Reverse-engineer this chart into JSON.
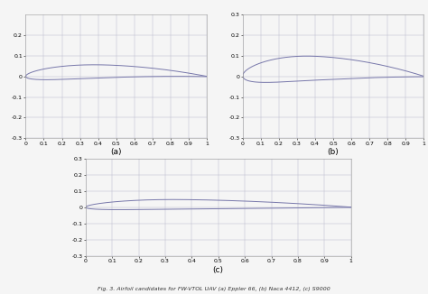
{
  "title": "Fig. 3. Airfoil candidates for FW-VTOL UAV (a) Eppler 66, (b) Naca 4412, (c) S9000",
  "line_color": "#7777aa",
  "line_width": 0.7,
  "grid_color": "#bbbbcc",
  "background": "#f5f5f5",
  "ylim_a": [
    -0.3,
    0.3
  ],
  "ylim_b": [
    -0.3,
    0.3
  ],
  "ylim_c": [
    -0.3,
    0.3
  ],
  "xlim": [
    0,
    1
  ],
  "yticks_a": [
    -0.3,
    -0.2,
    -0.1,
    0,
    0.1,
    0.2
  ],
  "yticks_b": [
    -0.3,
    -0.2,
    -0.1,
    0,
    0.1,
    0.2,
    0.3
  ],
  "yticks_c": [
    -0.3,
    -0.2,
    -0.1,
    0,
    0.1,
    0.2,
    0.3
  ],
  "xticks": [
    0,
    0.1,
    0.2,
    0.3,
    0.4,
    0.5,
    0.6,
    0.7,
    0.8,
    0.9,
    1
  ],
  "label_a": "(a)",
  "label_b": "(b)",
  "label_c": "(c)",
  "eppler66_t": 0.066,
  "eppler66_m": 0.025,
  "eppler66_p": 0.45,
  "naca4412_m": 0.04,
  "naca4412_p": 0.4,
  "naca4412_t": 0.12,
  "s9000_t": 0.06,
  "s9000_m": 0.018,
  "s9000_p": 0.35
}
